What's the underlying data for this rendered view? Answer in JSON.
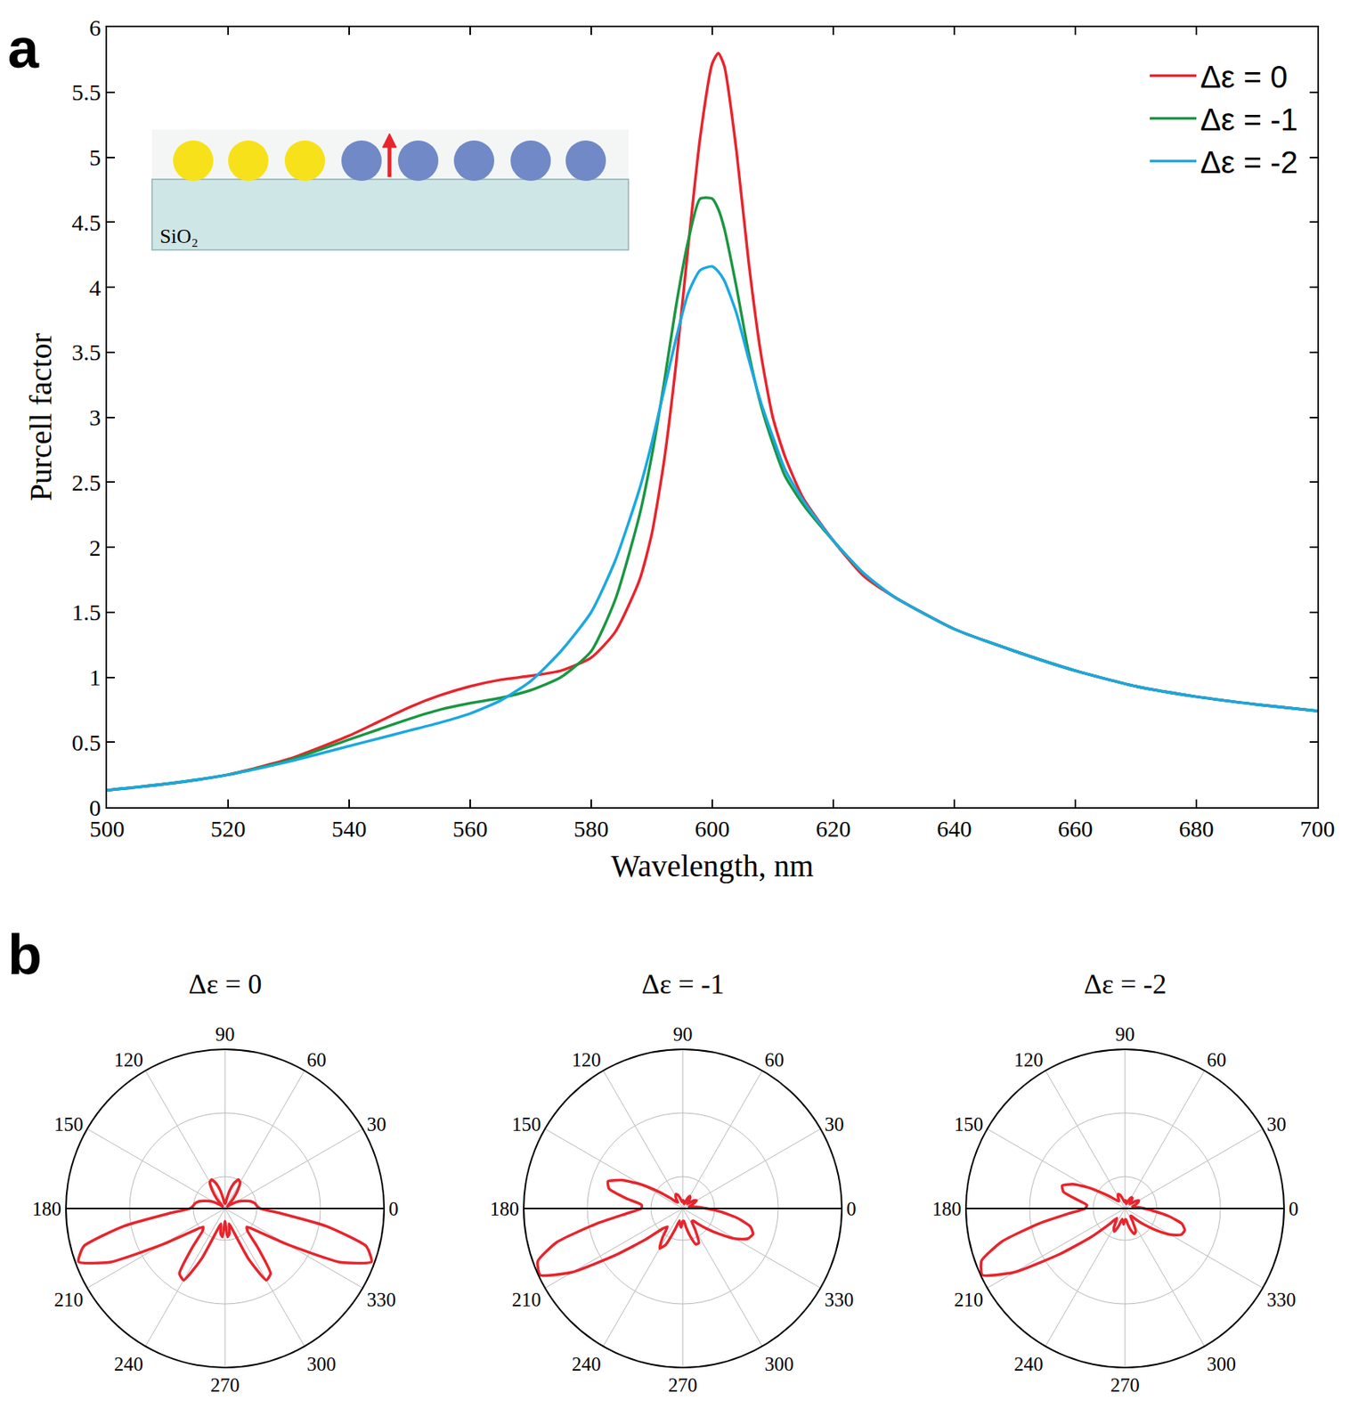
{
  "chart_data": [
    {
      "panel": "a",
      "type": "line",
      "x_label": "Wavelength, nm",
      "y_label": "Purcell factor",
      "inset_label": "SiO₂",
      "x": [
        500,
        510,
        520,
        530,
        540,
        545,
        550,
        555,
        560,
        565,
        570,
        575,
        580,
        584,
        588,
        590,
        592,
        594,
        596,
        598,
        600,
        601,
        602,
        604,
        606,
        608,
        610,
        612,
        615,
        620,
        625,
        630,
        640,
        650,
        660,
        670,
        680,
        690,
        700
      ],
      "series": [
        {
          "name": "Δε = 0",
          "color": "#e8242c",
          "values": [
            0.13,
            0.18,
            0.25,
            0.37,
            0.55,
            0.66,
            0.77,
            0.86,
            0.93,
            0.98,
            1.01,
            1.05,
            1.15,
            1.35,
            1.75,
            2.1,
            2.65,
            3.4,
            4.3,
            5.15,
            5.72,
            5.8,
            5.7,
            5.05,
            4.2,
            3.5,
            3.0,
            2.7,
            2.38,
            2.05,
            1.78,
            1.62,
            1.37,
            1.2,
            1.05,
            0.93,
            0.85,
            0.79,
            0.74
          ]
        },
        {
          "name": "Δε = -1",
          "color": "#1a9641",
          "values": [
            0.13,
            0.18,
            0.25,
            0.36,
            0.52,
            0.6,
            0.68,
            0.75,
            0.8,
            0.84,
            0.9,
            1.0,
            1.2,
            1.6,
            2.25,
            2.7,
            3.25,
            3.85,
            4.35,
            4.68,
            4.68,
            4.6,
            4.45,
            4.0,
            3.5,
            3.1,
            2.8,
            2.55,
            2.33,
            2.05,
            1.8,
            1.62,
            1.37,
            1.2,
            1.05,
            0.93,
            0.85,
            0.79,
            0.74
          ]
        },
        {
          "name": "Δε = -2",
          "color": "#1ba8e0",
          "values": [
            0.13,
            0.18,
            0.25,
            0.35,
            0.47,
            0.53,
            0.59,
            0.65,
            0.72,
            0.82,
            0.97,
            1.2,
            1.5,
            1.9,
            2.45,
            2.8,
            3.2,
            3.6,
            3.95,
            4.13,
            4.16,
            4.12,
            4.05,
            3.8,
            3.45,
            3.12,
            2.85,
            2.6,
            2.36,
            2.05,
            1.8,
            1.62,
            1.37,
            1.2,
            1.05,
            0.93,
            0.85,
            0.79,
            0.74
          ]
        }
      ],
      "xlim": [
        500,
        700
      ],
      "xticks": [
        500,
        520,
        540,
        560,
        580,
        600,
        620,
        640,
        660,
        680,
        700
      ],
      "ylim": [
        0,
        6
      ],
      "yticks": [
        0,
        0.5,
        1,
        1.5,
        2,
        2.5,
        3,
        3.5,
        4,
        4.5,
        5,
        5.5,
        6
      ],
      "legend": "upper right",
      "grid": false
    },
    {
      "panel": "b",
      "type": "polar",
      "title": "Δε = 0",
      "color": "#e8242c",
      "theta": [
        0,
        5,
        10,
        15,
        20,
        25,
        30,
        35,
        40,
        45,
        50,
        55,
        60,
        65,
        70,
        75,
        80,
        85,
        90,
        95,
        100,
        105,
        110,
        115,
        120,
        125,
        130,
        135,
        140,
        145,
        150,
        155,
        160,
        165,
        170,
        175,
        180,
        185,
        190,
        195,
        200,
        205,
        210,
        215,
        220,
        225,
        230,
        235,
        240,
        245,
        250,
        255,
        260,
        265,
        270,
        275,
        280,
        285,
        290,
        295,
        300,
        305,
        310,
        315,
        320,
        325,
        330,
        335,
        340,
        345,
        350,
        355,
        360
      ],
      "values": [
        0.22,
        0.2,
        0.19,
        0.17,
        0.14,
        0.11,
        0.08,
        0.04,
        0.02,
        0.03,
        0.08,
        0.14,
        0.19,
        0.2,
        0.17,
        0.12,
        0.06,
        0.03,
        0.05,
        0.03,
        0.06,
        0.12,
        0.17,
        0.2,
        0.19,
        0.14,
        0.08,
        0.03,
        0.02,
        0.04,
        0.08,
        0.11,
        0.14,
        0.17,
        0.19,
        0.2,
        0.22,
        0.35,
        0.65,
        0.92,
        0.98,
        0.8,
        0.45,
        0.25,
        0.18,
        0.2,
        0.32,
        0.5,
        0.52,
        0.35,
        0.15,
        0.1,
        0.16,
        0.18,
        0.08,
        0.18,
        0.16,
        0.1,
        0.15,
        0.35,
        0.52,
        0.5,
        0.32,
        0.2,
        0.18,
        0.25,
        0.45,
        0.8,
        0.98,
        0.92,
        0.65,
        0.35,
        0.22
      ],
      "rlim": [
        0,
        1
      ],
      "rticks": [
        0.2,
        0.6,
        1
      ],
      "thetaticks": [
        0,
        30,
        60,
        90,
        120,
        150,
        180,
        210,
        240,
        270,
        300,
        330
      ]
    },
    {
      "type": "polar",
      "title": "Δε = -1",
      "color": "#e8242c",
      "theta": [
        0,
        5,
        10,
        15,
        20,
        25,
        30,
        35,
        40,
        45,
        50,
        55,
        60,
        65,
        70,
        75,
        80,
        85,
        90,
        95,
        100,
        105,
        110,
        115,
        120,
        125,
        130,
        135,
        140,
        145,
        150,
        155,
        160,
        165,
        170,
        175,
        180,
        185,
        190,
        195,
        200,
        205,
        210,
        215,
        220,
        225,
        230,
        235,
        240,
        245,
        250,
        255,
        260,
        265,
        270,
        275,
        280,
        285,
        290,
        295,
        300,
        305,
        310,
        315,
        320,
        325,
        330,
        335,
        340,
        345,
        350,
        355,
        360
      ],
      "values": [
        0.15,
        0.1,
        0.06,
        0.04,
        0.06,
        0.08,
        0.1,
        0.09,
        0.06,
        0.04,
        0.06,
        0.08,
        0.09,
        0.07,
        0.04,
        0.03,
        0.04,
        0.05,
        0.05,
        0.04,
        0.05,
        0.07,
        0.09,
        0.1,
        0.09,
        0.07,
        0.05,
        0.06,
        0.1,
        0.18,
        0.3,
        0.42,
        0.5,
        0.48,
        0.36,
        0.26,
        0.26,
        0.35,
        0.55,
        0.82,
        0.97,
        0.99,
        0.8,
        0.5,
        0.3,
        0.18,
        0.15,
        0.22,
        0.29,
        0.25,
        0.14,
        0.08,
        0.1,
        0.12,
        0.08,
        0.08,
        0.12,
        0.18,
        0.24,
        0.24,
        0.16,
        0.1,
        0.1,
        0.14,
        0.2,
        0.28,
        0.38,
        0.45,
        0.47,
        0.44,
        0.35,
        0.24,
        0.15
      ],
      "rlim": [
        0,
        1
      ],
      "rticks": [
        0.2,
        0.6,
        1
      ],
      "thetaticks": [
        0,
        30,
        60,
        90,
        120,
        150,
        180,
        210,
        240,
        270,
        300,
        330
      ]
    },
    {
      "type": "polar",
      "title": "Δε = -2",
      "color": "#e8242c",
      "theta": [
        0,
        5,
        10,
        15,
        20,
        25,
        30,
        35,
        40,
        45,
        50,
        55,
        60,
        65,
        70,
        75,
        80,
        85,
        90,
        95,
        100,
        105,
        110,
        115,
        120,
        125,
        130,
        135,
        140,
        145,
        150,
        155,
        160,
        165,
        170,
        175,
        180,
        185,
        190,
        195,
        200,
        205,
        210,
        215,
        220,
        225,
        230,
        235,
        240,
        245,
        250,
        255,
        260,
        265,
        270,
        275,
        280,
        285,
        290,
        295,
        300,
        305,
        310,
        315,
        320,
        325,
        330,
        335,
        340,
        345,
        350,
        355,
        360
      ],
      "values": [
        0.12,
        0.08,
        0.05,
        0.05,
        0.07,
        0.09,
        0.1,
        0.08,
        0.05,
        0.04,
        0.06,
        0.08,
        0.08,
        0.06,
        0.04,
        0.03,
        0.04,
        0.05,
        0.05,
        0.04,
        0.05,
        0.07,
        0.09,
        0.1,
        0.09,
        0.07,
        0.06,
        0.07,
        0.1,
        0.16,
        0.26,
        0.36,
        0.42,
        0.4,
        0.3,
        0.24,
        0.25,
        0.35,
        0.55,
        0.8,
        0.96,
        0.99,
        0.8,
        0.5,
        0.28,
        0.14,
        0.08,
        0.1,
        0.14,
        0.16,
        0.12,
        0.07,
        0.08,
        0.1,
        0.07,
        0.07,
        0.1,
        0.14,
        0.17,
        0.16,
        0.1,
        0.06,
        0.06,
        0.1,
        0.16,
        0.24,
        0.33,
        0.39,
        0.4,
        0.37,
        0.28,
        0.18,
        0.12
      ],
      "rlim": [
        0,
        1
      ],
      "rticks": [
        0.2,
        0.6,
        1
      ],
      "thetaticks": [
        0,
        30,
        60,
        90,
        120,
        150,
        180,
        210,
        240,
        270,
        300,
        330
      ]
    }
  ]
}
